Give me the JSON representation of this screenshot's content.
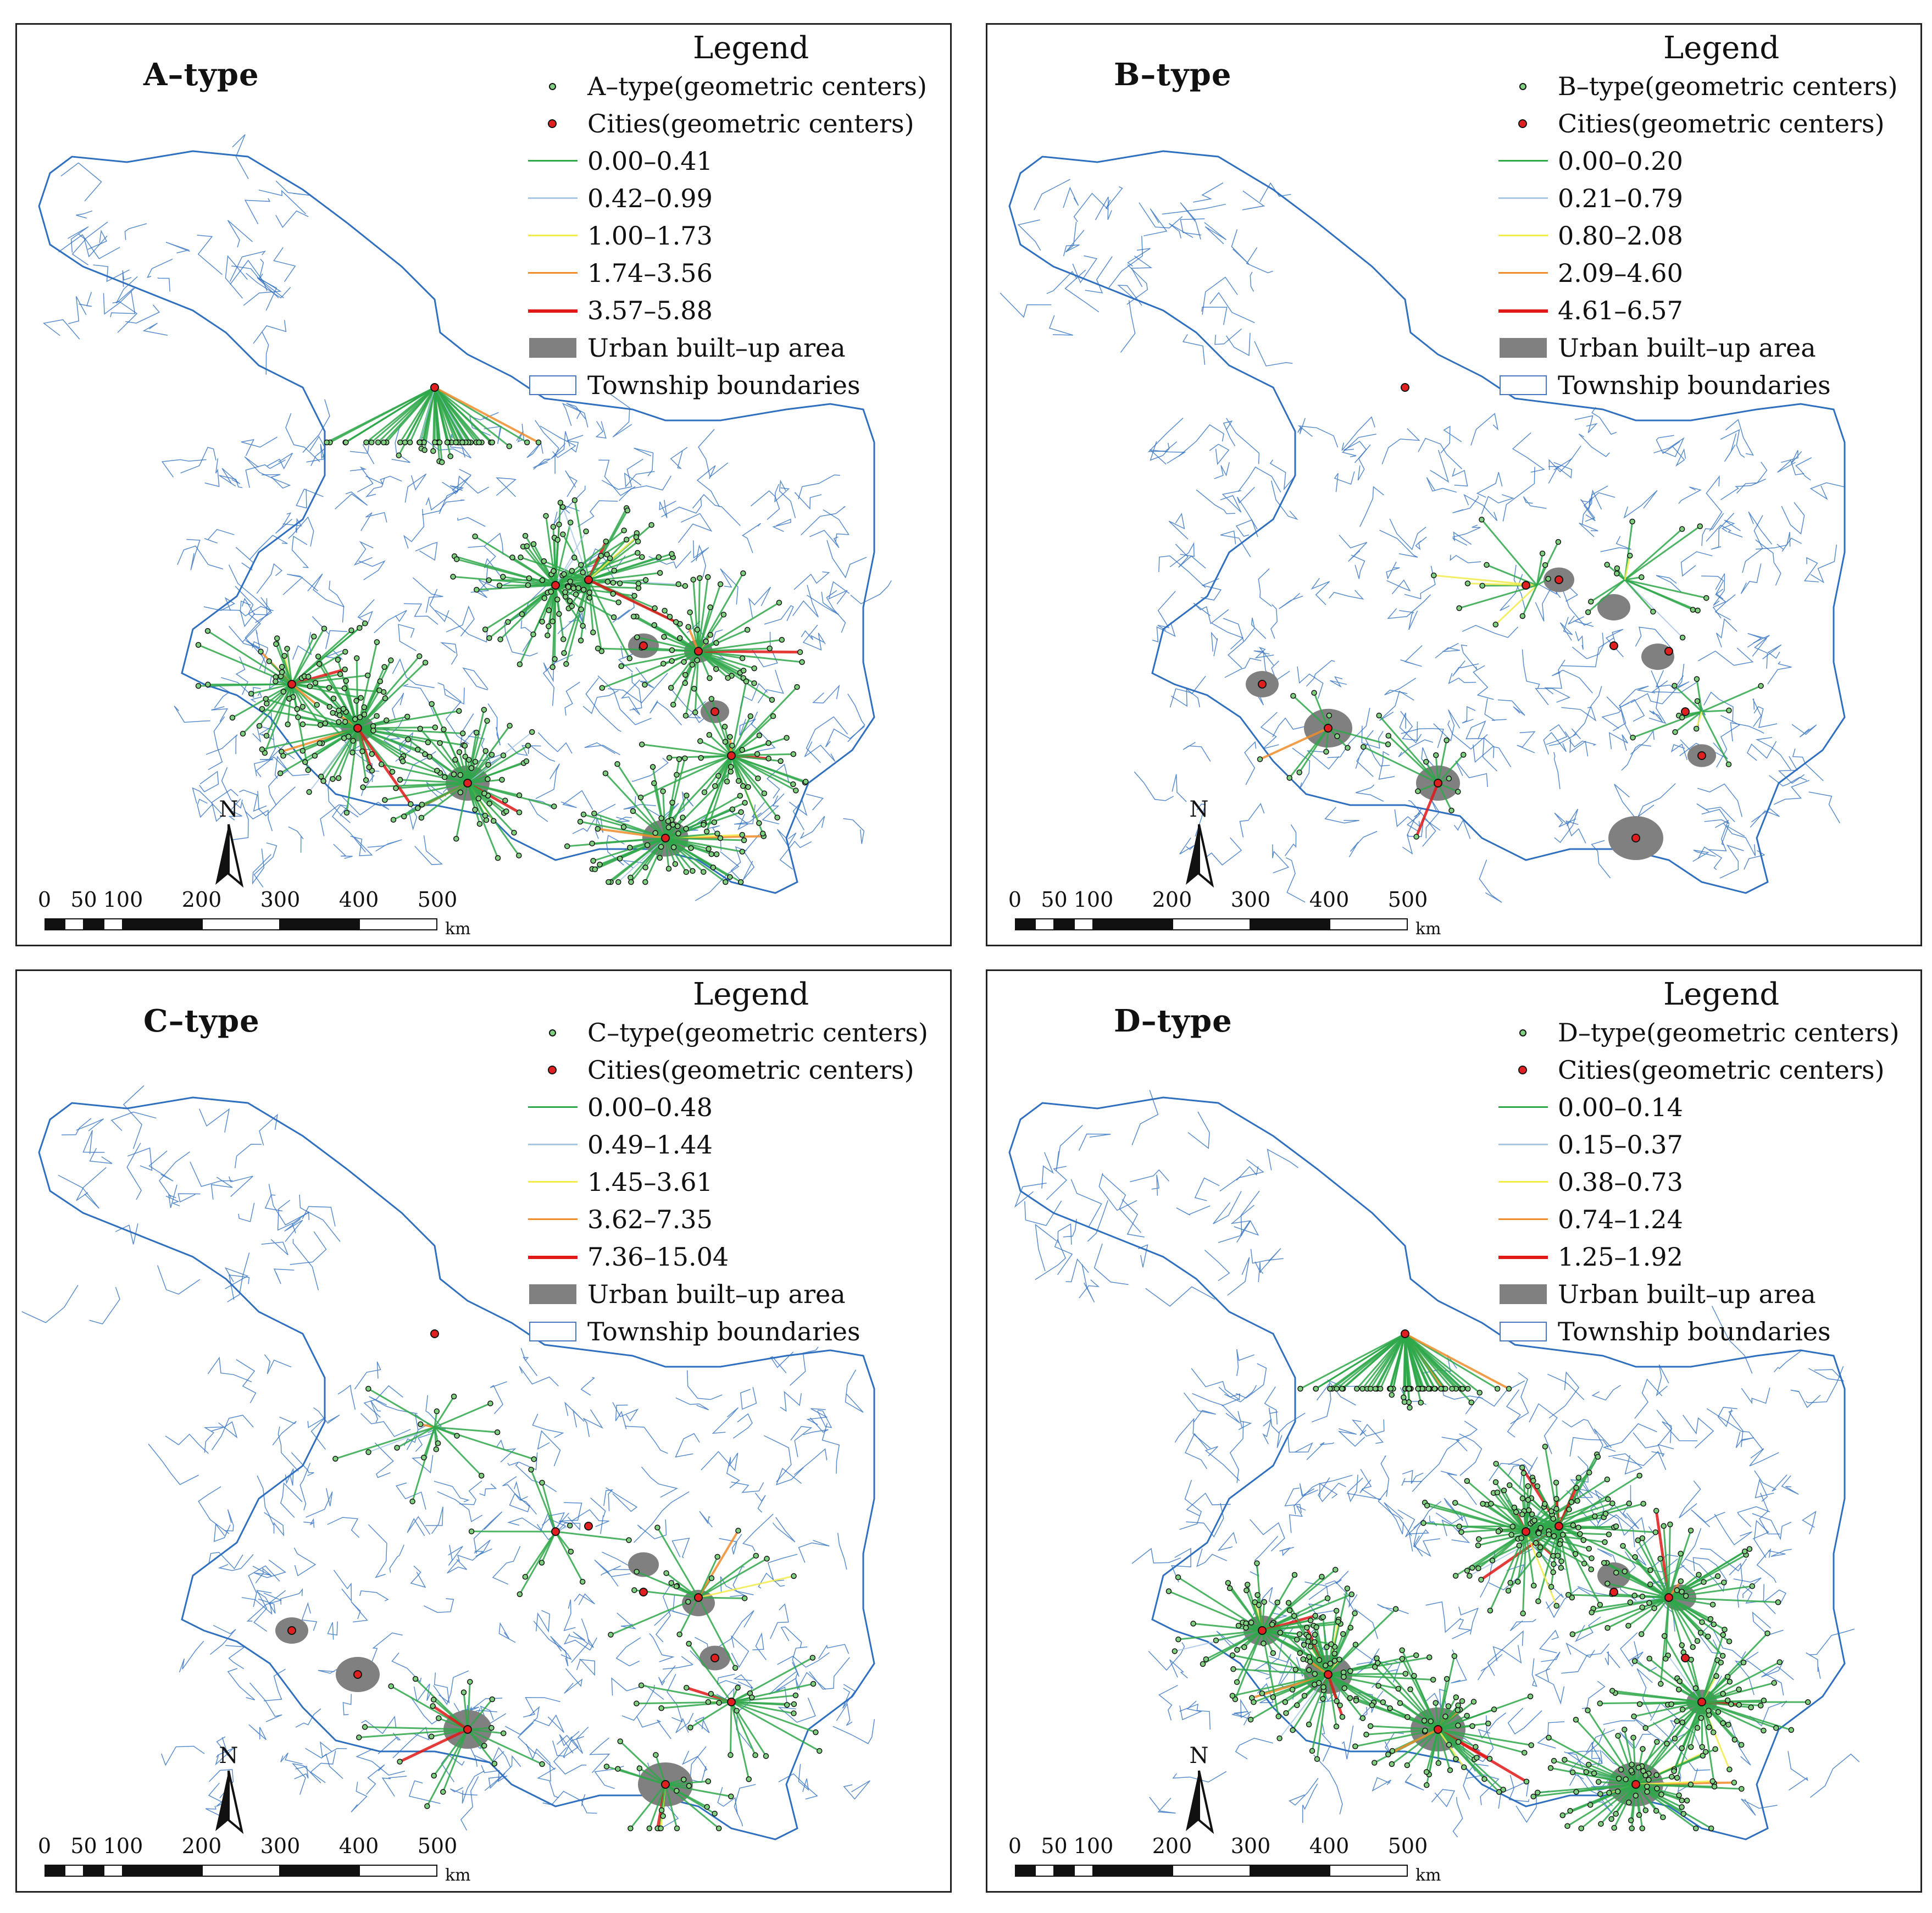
{
  "colors": {
    "boundary": "#2f6fbf",
    "urban": "#808080",
    "point_fill": "#7fd07f",
    "city_fill": "#e02020",
    "class1": "#2ea84a",
    "class2": "#a9c7e8",
    "class3": "#f2ec4a",
    "class4": "#f08c2a",
    "class5": "#e01818"
  },
  "north_label": "N",
  "scale": {
    "labels": [
      "0",
      "50",
      "100",
      "200",
      "300",
      "400",
      "500"
    ],
    "unit": "km"
  },
  "panels": [
    {
      "id": "a",
      "title": "A–type",
      "legend": {
        "title": "Legend",
        "points_label": "A–type(geometric centers)",
        "cities_label": "Cities(geometric centers)",
        "classes": [
          "0.00–0.41",
          "0.42–0.99",
          "1.00–1.73",
          "1.74–3.56",
          "3.57–5.88"
        ],
        "urban_label": "Urban built–up area",
        "boundary_label": "Township boundaries"
      }
    },
    {
      "id": "b",
      "title": "B–type",
      "legend": {
        "title": "Legend",
        "points_label": "B–type(geometric centers)",
        "cities_label": "Cities(geometric centers)",
        "classes": [
          "0.00–0.20",
          "0.21–0.79",
          "0.80–2.08",
          "2.09–4.60",
          "4.61–6.57"
        ],
        "urban_label": "Urban built–up area",
        "boundary_label": "Township boundaries"
      }
    },
    {
      "id": "c",
      "title": "C–type",
      "legend": {
        "title": "Legend",
        "points_label": "C–type(geometric centers)",
        "cities_label": "Cities(geometric centers)",
        "classes": [
          "0.00–0.48",
          "0.49–1.44",
          "1.45–3.61",
          "3.62–7.35",
          "7.36–15.04"
        ],
        "urban_label": "Urban built–up area",
        "boundary_label": "Township boundaries"
      }
    },
    {
      "id": "d",
      "title": "D–type",
      "legend": {
        "title": "Legend",
        "points_label": "D–type(geometric centers)",
        "cities_label": "Cities(geometric centers)",
        "classes": [
          "0.00–0.14",
          "0.15–0.37",
          "0.38–0.73",
          "0.74–1.24",
          "1.25–1.92"
        ],
        "urban_label": "Urban built–up area",
        "boundary_label": "Township boundaries"
      }
    }
  ]
}
